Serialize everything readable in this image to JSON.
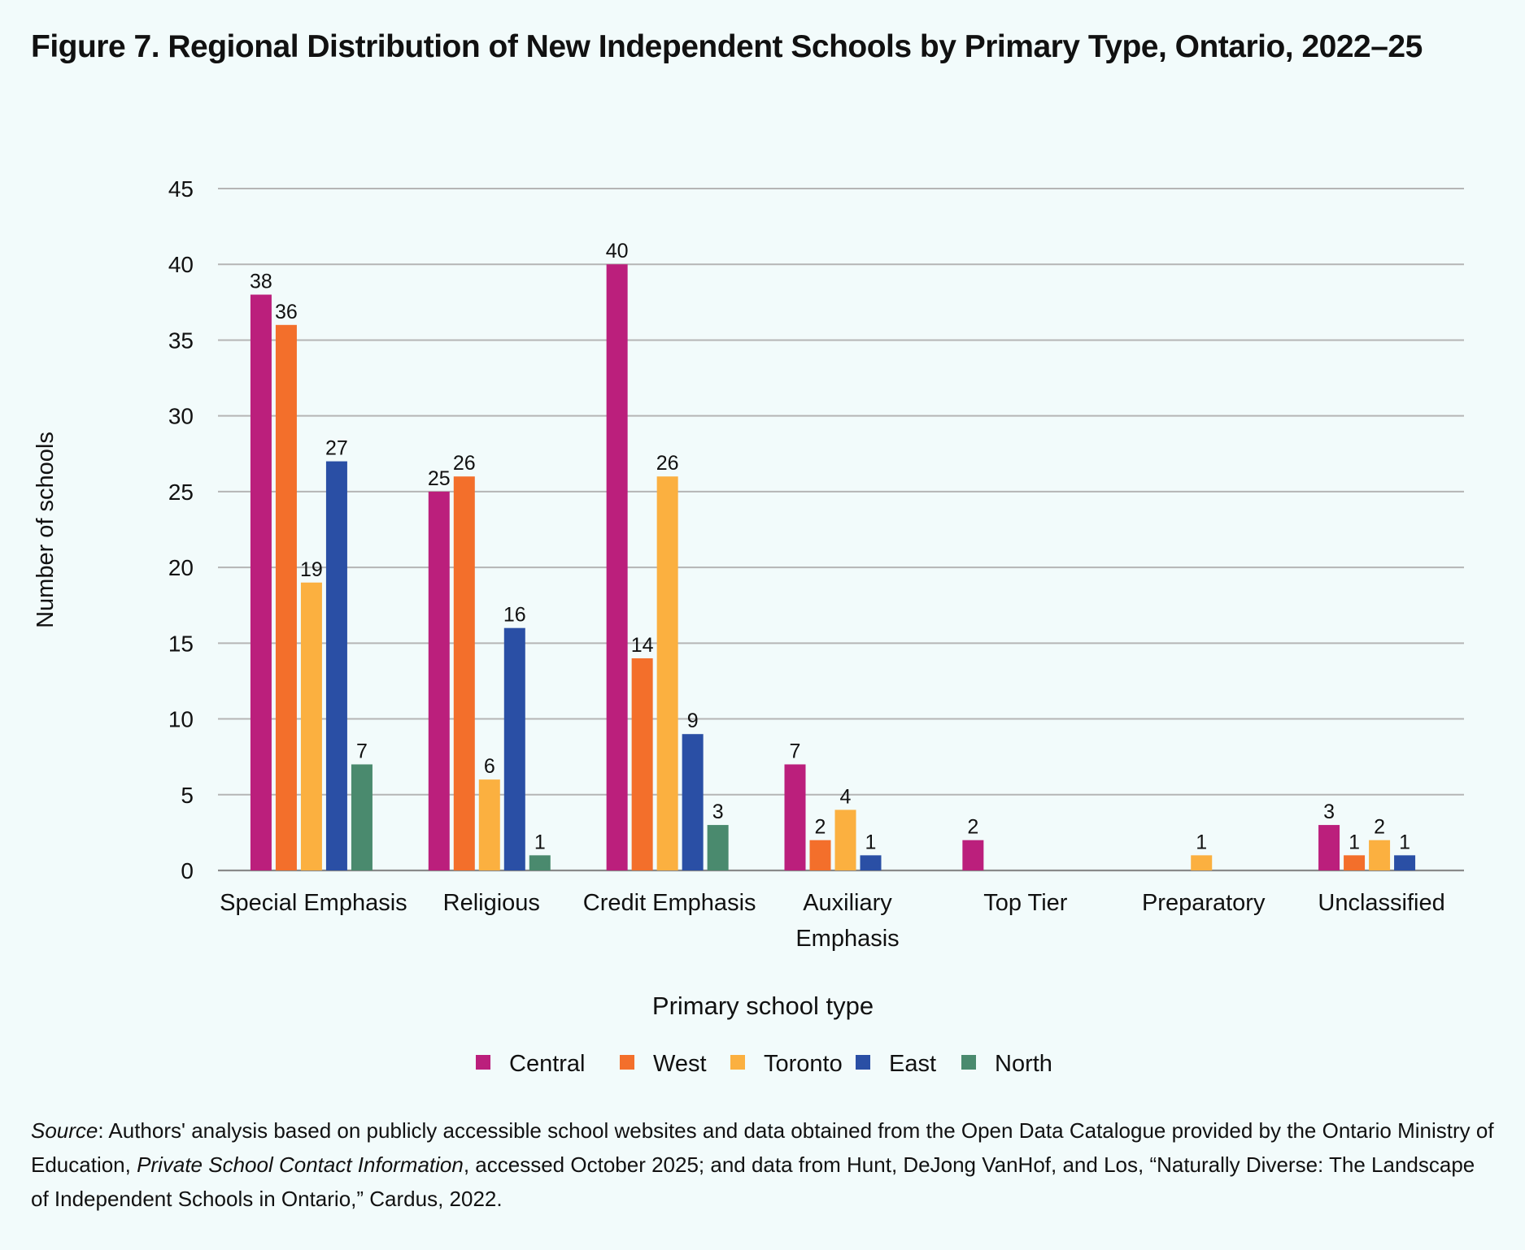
{
  "title": "Figure 7. Regional Distribution of New Independent Schools by Primary Type, Ontario, 2022–25",
  "source": {
    "label": "Source",
    "text_1": ": Authors' analysis based on publicly accessible school websites and data obtained from the Open Data Catalogue provided by the Ontario Ministry of Education, ",
    "italic_1": "Private School Contact Information",
    "text_2": ", accessed October 2025; and data from  Hunt, DeJong VanHof, and Los, “Naturally Diverse: The Landscape of Independent Schools in Ontario,” Cardus, 2022."
  },
  "chart_data": {
    "type": "bar",
    "title": "Figure 7. Regional Distribution of New Independent Schools by Primary Type, Ontario, 2022–25",
    "xlabel": "Primary school type",
    "ylabel": "Number of schools",
    "ylim": [
      0,
      45
    ],
    "yticks": [
      0,
      5,
      10,
      15,
      20,
      25,
      30,
      35,
      40,
      45
    ],
    "grid": true,
    "legend_position": "bottom",
    "categories": [
      [
        "Special Emphasis"
      ],
      [
        "Religious"
      ],
      [
        "Credit Emphasis"
      ],
      [
        "Auxiliary",
        "Emphasis"
      ],
      [
        "Top Tier"
      ],
      [
        "Preparatory"
      ],
      [
        "Unclassified"
      ]
    ],
    "series": [
      {
        "name": "Central",
        "color": "#bb1f7c",
        "values": [
          38,
          25,
          40,
          7,
          2,
          null,
          3
        ]
      },
      {
        "name": "West",
        "color": "#f36f2b",
        "values": [
          36,
          26,
          14,
          2,
          null,
          null,
          1
        ]
      },
      {
        "name": "Toronto",
        "color": "#fbb040",
        "values": [
          19,
          6,
          26,
          4,
          null,
          1,
          2
        ]
      },
      {
        "name": "East",
        "color": "#2a4fa5",
        "values": [
          27,
          16,
          9,
          1,
          null,
          null,
          1
        ]
      },
      {
        "name": "North",
        "color": "#4a8a6e",
        "values": [
          7,
          1,
          3,
          null,
          null,
          null,
          null
        ]
      }
    ],
    "colors": {
      "gridline": "#b5b5b5",
      "axis": "#8a8a8a",
      "background": "#f2fbfb"
    }
  }
}
